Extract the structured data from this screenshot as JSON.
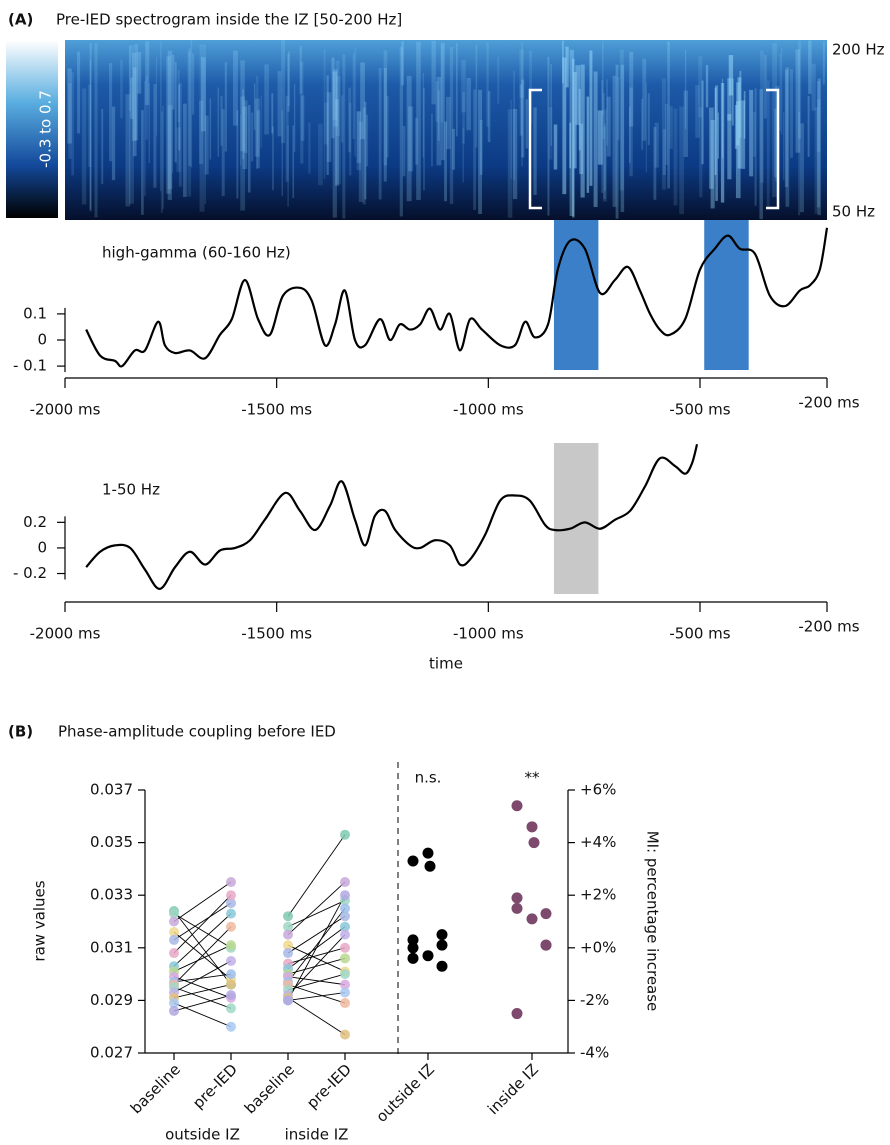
{
  "panel_a": {
    "label": "(A)",
    "title": "Pre-IED spectrogram inside the IZ [50-200 Hz]",
    "colorbar_label": "-0.3 to 0.7",
    "freq_top": "200 Hz",
    "freq_bottom": "50 Hz"
  },
  "panel_b": {
    "label": "(B)",
    "title": "Phase-amplitude coupling before IED"
  },
  "chart_data": [
    {
      "type": "line",
      "title": "high-gamma (60-160 Hz)",
      "color": "#000000",
      "x": [
        -1950,
        -1917,
        -1882,
        -1865,
        -1835,
        -1811,
        -1780,
        -1764,
        -1740,
        -1705,
        -1669,
        -1634,
        -1606,
        -1575,
        -1544,
        -1516,
        -1485,
        -1445,
        -1417,
        -1386,
        -1362,
        -1339,
        -1315,
        -1291,
        -1256,
        -1232,
        -1209,
        -1185,
        -1161,
        -1138,
        -1114,
        -1091,
        -1067,
        -1043,
        -1015,
        -972,
        -937,
        -913,
        -890,
        -859,
        -836,
        -807,
        -772,
        -736,
        -701,
        -670,
        -642,
        -618,
        -595,
        -571,
        -535,
        -500,
        -465,
        -434,
        -406,
        -370,
        -335,
        -299,
        -264,
        -240,
        -217,
        -200
      ],
      "values": [
        0.04,
        -0.06,
        -0.08,
        -0.1,
        -0.04,
        -0.04,
        0.07,
        -0.02,
        -0.05,
        -0.04,
        -0.07,
        0.02,
        0.08,
        0.23,
        0.08,
        0.02,
        0.17,
        0.2,
        0.15,
        -0.02,
        0.06,
        0.19,
        0,
        -0.02,
        0.08,
        0,
        0.06,
        0.04,
        0.06,
        0.12,
        0.04,
        0.1,
        -0.04,
        0.08,
        0.04,
        -0.02,
        -0.02,
        0.07,
        0.01,
        0.06,
        0.27,
        0.38,
        0.35,
        0.18,
        0.23,
        0.28,
        0.19,
        0.1,
        0.04,
        0.02,
        0.08,
        0.27,
        0.35,
        0.4,
        0.35,
        0.33,
        0.17,
        0.13,
        0.19,
        0.21,
        0.27,
        0.43
      ],
      "xlim": [
        -2000,
        -200
      ],
      "ylim": [
        -0.115,
        0.46
      ],
      "xticks": [
        {
          "value": -2000,
          "label": "-2000 ms"
        },
        {
          "value": -1500,
          "label": "-1500 ms"
        },
        {
          "value": -1000,
          "label": "-1000 ms"
        },
        {
          "value": -500,
          "label": "-500 ms"
        },
        {
          "value": -200,
          "label": "-200 ms"
        }
      ],
      "yticks": [
        {
          "value": 0.1,
          "label": "0.1"
        },
        0,
        {
          "value": -0.1,
          "label": "- 0.1"
        }
      ],
      "highlights": {
        "color": "#3b7fc8",
        "ranges": [
          [
            -845,
            -740
          ],
          [
            -490,
            -385
          ]
        ]
      }
    },
    {
      "type": "line",
      "title": "1-50 Hz",
      "xlabel": "time",
      "color": "#000000",
      "x": [
        -1950,
        -1917,
        -1882,
        -1846,
        -1811,
        -1776,
        -1740,
        -1705,
        -1669,
        -1634,
        -1598,
        -1563,
        -1528,
        -1480,
        -1445,
        -1409,
        -1374,
        -1346,
        -1315,
        -1291,
        -1268,
        -1244,
        -1220,
        -1185,
        -1161,
        -1126,
        -1091,
        -1067,
        -1043,
        -1008,
        -972,
        -937,
        -902,
        -866,
        -843,
        -807,
        -772,
        -736,
        -701,
        -665,
        -630,
        -595,
        -559,
        -535,
        -519,
        -507
      ],
      "values": [
        -0.15,
        -0.03,
        0.02,
        0,
        -0.17,
        -0.32,
        -0.15,
        -0.03,
        -0.13,
        -0.02,
        0,
        0.06,
        0.22,
        0.43,
        0.29,
        0.14,
        0.33,
        0.52,
        0.22,
        0.02,
        0.25,
        0.29,
        0.14,
        0.02,
        0,
        0.06,
        0.02,
        -0.13,
        -0.09,
        0.1,
        0.37,
        0.41,
        0.37,
        0.18,
        0.14,
        0.15,
        0.2,
        0.15,
        0.22,
        0.29,
        0.48,
        0.7,
        0.64,
        0.58,
        0.66,
        0.81
      ],
      "xlim": [
        -2000,
        -200
      ],
      "ylim": [
        -0.36,
        0.82
      ],
      "xticks": [
        {
          "value": -2000,
          "label": "-2000 ms"
        },
        {
          "value": -1500,
          "label": "-1500 ms"
        },
        {
          "value": -1000,
          "label": "-1000 ms"
        },
        {
          "value": -500,
          "label": "-500 ms"
        },
        {
          "value": -200,
          "label": "-200 ms"
        }
      ],
      "yticks": [
        {
          "value": 0.2,
          "label": "0.2"
        },
        0,
        {
          "value": -0.2,
          "label": "- 0.2"
        }
      ],
      "highlights": {
        "color": "#c8c8c8",
        "ranges": [
          [
            -845,
            -740
          ]
        ]
      }
    },
    {
      "type": "paired",
      "ylabel": "raw values",
      "y2label": "MI: percentage increase",
      "ylim": [
        0.027,
        0.037
      ],
      "yticks": [
        0.027,
        0.029,
        0.031,
        0.033,
        0.035,
        0.037
      ],
      "y2lim": [
        -4,
        6
      ],
      "y2ticks": [
        {
          "value": 6,
          "label": "+6%"
        },
        {
          "value": 4,
          "label": "+4%"
        },
        {
          "value": 2,
          "label": "+2%"
        },
        {
          "value": 0,
          "label": "+0%"
        },
        {
          "value": -2,
          "label": "-2%"
        },
        {
          "value": -4,
          "label": "-4%"
        }
      ],
      "categories": [
        "baseline",
        "pre-IED",
        "baseline",
        "pre-IED",
        "outside IZ",
        "inside IZ"
      ],
      "groups": [
        "outside IZ",
        "inside IZ"
      ],
      "colors": [
        "#7fc9b0",
        "#9ed7c4",
        "#c8a8dc",
        "#f0d88c",
        "#a8b8e8",
        "#e8a8c8",
        "#88c8d8",
        "#b8d890",
        "#d8a8e0",
        "#9cc0ec",
        "#f0b8a0",
        "#a0d8c8",
        "#c0b0e8",
        "#e0c080",
        "#a8c8f0",
        "#b0a8e0"
      ],
      "pairs": [
        {
          "baseline": [
            0.0324,
            0.0323,
            0.032,
            0.0316,
            0.0313,
            0.0308,
            0.0303,
            0.0301,
            0.0299,
            0.0297,
            0.0296,
            0.0295,
            0.0293,
            0.0291,
            0.0289,
            0.0286
          ],
          "pre": [
            0.0296,
            0.031,
            0.0335,
            0.0298,
            0.0327,
            0.033,
            0.0323,
            0.0311,
            0.0291,
            0.03,
            0.0318,
            0.0287,
            0.0305,
            0.0296,
            0.028,
            0.0292
          ]
        },
        {
          "baseline": [
            0.0322,
            0.0318,
            0.0315,
            0.0311,
            0.0308,
            0.0304,
            0.0302,
            0.03,
            0.0299,
            0.0297,
            0.0296,
            0.0294,
            0.0292,
            0.0291,
            0.029,
            0.029
          ],
          "pre": [
            0.0353,
            0.0328,
            0.0335,
            0.0301,
            0.0322,
            0.031,
            0.0318,
            0.0306,
            0.0296,
            0.0325,
            0.0289,
            0.03,
            0.0315,
            0.0277,
            0.0293,
            0.033
          ]
        }
      ],
      "mi_series": [
        {
          "color": "#000000",
          "axis": "y2",
          "annotation": "n.s.",
          "values": [
            3.3,
            3.6,
            3.1,
            0.3,
            0.5,
            -0.4,
            -0.3,
            0.1,
            -0.7,
            0.0
          ]
        },
        {
          "color": "#7d4a6e",
          "axis": "y2",
          "annotation": "**",
          "values": [
            5.4,
            4.6,
            4.0,
            1.9,
            1.3,
            1.5,
            1.1,
            0.1,
            0.1,
            -2.5
          ]
        }
      ]
    }
  ]
}
